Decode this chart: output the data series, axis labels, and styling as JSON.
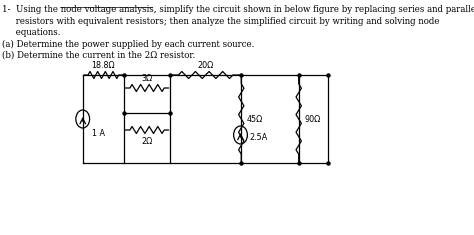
{
  "text_lines": [
    "1-  Using the node voltage analysis, simplify the circuit shown in below figure by replacing series and parallel",
    "     resistors with equivalent resistors; then analyze the simplified circuit by writing and solving node",
    "     equations.",
    "(a) Determine the power supplied by each current source.",
    "(b) Determine the current in the 2Ω resistor."
  ],
  "underline_start": "1-  Using the ",
  "underline_word": "node voltage analysis",
  "bg_color": "#ffffff",
  "text_color": "#000000",
  "R1": "18.8Ω",
  "R2": "3Ω",
  "R3": "2Ω",
  "R4": "20Ω",
  "R5": "45Ω",
  "R6": "90Ω",
  "I1": "1 A",
  "I2": "2.5A",
  "fs_text": 6.2,
  "fs_label": 5.8,
  "lw_circuit": 0.9
}
